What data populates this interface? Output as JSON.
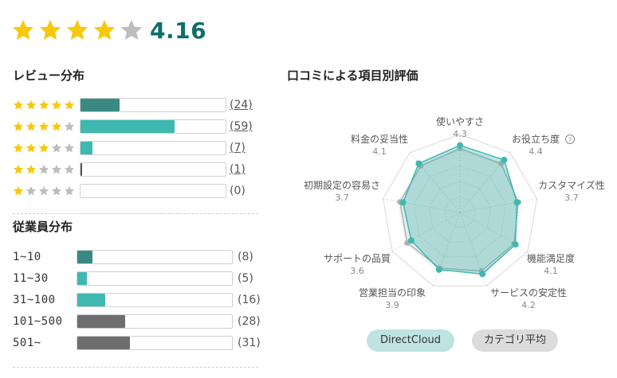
{
  "overall": {
    "rating": "4.16",
    "stars_filled": 4,
    "star_color": "#f7c90c",
    "star_empty_color": "#bdbdbd"
  },
  "review_distribution": {
    "title": "レビュー分布",
    "rows": [
      {
        "stars": 5,
        "count": 24,
        "count_label": "(24)",
        "share": 0.27,
        "color": "#3a8a83",
        "linked": true
      },
      {
        "stars": 4,
        "count": 59,
        "count_label": "(59)",
        "share": 0.65,
        "color": "#3fb8b2",
        "linked": true
      },
      {
        "stars": 3,
        "count": 7,
        "count_label": "(7)",
        "share": 0.08,
        "color": "#3fb8b2",
        "linked": true
      },
      {
        "stars": 2,
        "count": 1,
        "count_label": "(1)",
        "share": 0.01,
        "color": "#555555",
        "linked": true
      },
      {
        "stars": 1,
        "count": 0,
        "count_label": "(0)",
        "share": 0.0,
        "color": "#555555",
        "linked": false
      }
    ]
  },
  "employee_distribution": {
    "title": "従業員分布",
    "rows": [
      {
        "label": "1~10",
        "count": 8,
        "count_label": "(8)",
        "share": 0.1,
        "color": "#3a8a83"
      },
      {
        "label": "11~30",
        "count": 5,
        "count_label": "(5)",
        "share": 0.06,
        "color": "#3fb8b2"
      },
      {
        "label": "31~100",
        "count": 16,
        "count_label": "(16)",
        "share": 0.18,
        "color": "#3fb8b2"
      },
      {
        "label": "101~500",
        "count": 28,
        "count_label": "(28)",
        "share": 0.31,
        "color": "#6e6e6e"
      },
      {
        "label": "501~",
        "count": 31,
        "count_label": "(31)",
        "share": 0.34,
        "color": "#6e6e6e"
      }
    ]
  },
  "radar": {
    "title": "口コミによる項目別評価",
    "help_icon": "question-circle-icon",
    "primary_color": "#3fb8b2",
    "average_color": "#b0b0b0"
  },
  "chart_data": {
    "type": "radar",
    "title": "口コミによる項目別評価",
    "categories": [
      "使いやすさ",
      "お役立ち度",
      "カスタマイズ性",
      "機能満足度",
      "サービスの安定性",
      "営業担当の印象",
      "サポートの品質",
      "初期設定の容易さ",
      "料金の妥当性"
    ],
    "value_labels": [
      "4.3",
      "4.4",
      "3.7",
      "4.1",
      "4.2",
      "3.9",
      "3.6",
      "3.7",
      "4.1"
    ],
    "ylim": [
      0,
      5
    ],
    "series": [
      {
        "name": "DirectCloud",
        "values": [
          4.3,
          4.4,
          3.7,
          4.1,
          4.2,
          3.9,
          3.6,
          3.7,
          4.1
        ]
      },
      {
        "name": "カテゴリ平均",
        "values": [
          4.1,
          4.1,
          3.8,
          4.0,
          4.0,
          3.8,
          3.9,
          3.9,
          3.9
        ]
      }
    ]
  }
}
